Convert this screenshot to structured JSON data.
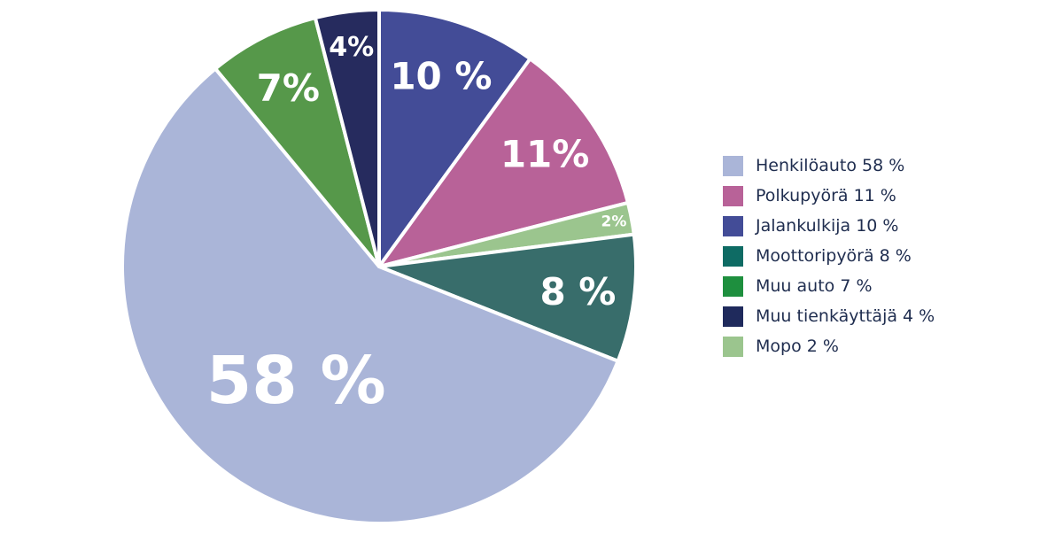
{
  "chart_data": {
    "type": "pie",
    "start_direction": "top",
    "clockwise": true,
    "slices": [
      {
        "label": "10 %",
        "value": 10,
        "color": "#434c97"
      },
      {
        "label": "11%",
        "value": 11,
        "color": "#b86298"
      },
      {
        "label": "2%",
        "value": 2,
        "color": "#9bc58e"
      },
      {
        "label": "8 %",
        "value": 8,
        "color": "#386d6b"
      },
      {
        "label": "58 %",
        "value": 58,
        "color": "#aab5d8"
      },
      {
        "label": "7%",
        "value": 7,
        "color": "#56984a"
      },
      {
        "label": "4%",
        "value": 4,
        "color": "#262b5e"
      }
    ],
    "legend_position": "right",
    "legend": [
      {
        "label": "Henkilöauto 58 %",
        "color": "#aab5d8"
      },
      {
        "label": "Polkupyörä 11 %",
        "color": "#b86298"
      },
      {
        "label": "Jalankulkija 10 %",
        "color": "#434c97"
      },
      {
        "label": "Moottoripyörä 8 %",
        "color": "#0e6b64"
      },
      {
        "label": "Muu auto 7 %",
        "color": "#1e8f3e"
      },
      {
        "label": "Muu tienkäyttäjä 4 %",
        "color": "#1f2a5c"
      },
      {
        "label": "Mopo 2 %",
        "color": "#9bc58e"
      }
    ]
  }
}
